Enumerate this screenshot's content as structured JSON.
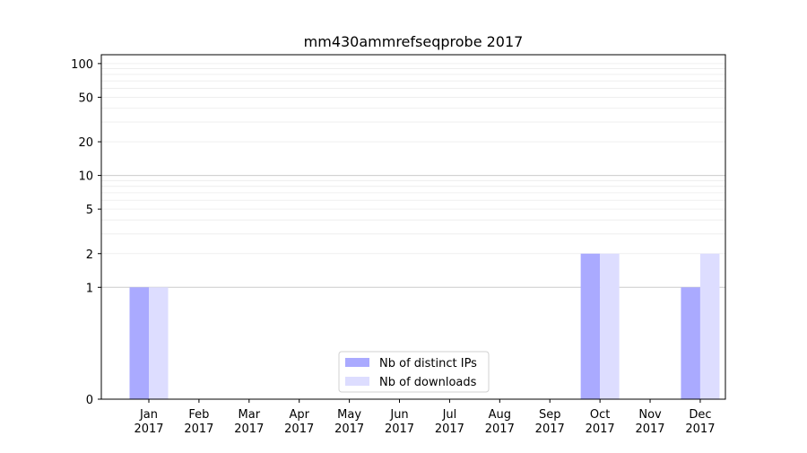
{
  "chart_data": {
    "type": "bar",
    "title": "mm430ammrefseqprobe 2017",
    "xlabel": "",
    "ylabel": "",
    "y_scale": "symlog",
    "ylim": [
      0,
      120
    ],
    "yticks": [
      0,
      1,
      2,
      5,
      10,
      20,
      50,
      100
    ],
    "ytick_labels": [
      "0",
      "1",
      "2",
      "5",
      "10",
      "20",
      "50",
      "100"
    ],
    "grid": true,
    "legend_position": "bottom-center",
    "categories": [
      "Jan\n2017",
      "Feb\n2017",
      "Mar\n2017",
      "Apr\n2017",
      "May\n2017",
      "Jun\n2017",
      "Jul\n2017",
      "Aug\n2017",
      "Sep\n2017",
      "Oct\n2017",
      "Nov\n2017",
      "Dec\n2017"
    ],
    "series": [
      {
        "name": "Nb of distinct IPs",
        "color": "#aaaaff",
        "values": [
          1,
          0,
          0,
          0,
          0,
          0,
          0,
          0,
          0,
          2,
          0,
          1
        ]
      },
      {
        "name": "Nb of downloads",
        "color": "#ddddff",
        "values": [
          1,
          0,
          0,
          0,
          0,
          0,
          0,
          0,
          0,
          2,
          0,
          2
        ]
      }
    ]
  }
}
